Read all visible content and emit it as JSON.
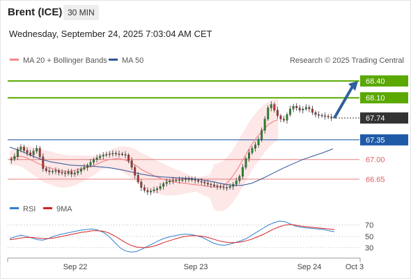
{
  "header": {
    "instrument": "Brent (ICE)",
    "timeframe": "30 MIN",
    "datetime": "Wednesday, September 24, 2025 7:03:04 AM CET"
  },
  "legend": {
    "ma20": "MA 20 + Bollinger Bands",
    "ma50": "MA 50",
    "copyright": "Research © 2025 Trading Central",
    "rsi": "RSI",
    "rsi_ma": "9MA"
  },
  "colors": {
    "ma20": "#f08a8a",
    "ma50": "#2f5597",
    "bollinger_fill": "#fde3e3",
    "resistance": "#5aa800",
    "support": "#e06060",
    "current": "#333333",
    "pivot": "#1e5aa8",
    "rsi": "#2f7fd0",
    "rsi_ma": "#d62020",
    "arrow": "#2f5f9e"
  },
  "chart_data": {
    "type": "candlestick",
    "x_ticks": [
      "Sep 22",
      "Sep 23",
      "Sep 24",
      "Oct 3"
    ],
    "y_range": [
      66.3,
      68.6
    ],
    "closes": [
      67.01,
      67.05,
      67.18,
      67.22,
      67.16,
      67.12,
      67.08,
      67.15,
      67.2,
      67.05,
      66.84,
      66.8,
      66.78,
      66.79,
      66.8,
      66.77,
      66.76,
      66.75,
      66.78,
      66.74,
      66.76,
      66.79,
      66.83,
      66.86,
      66.9,
      66.95,
      67.0,
      67.03,
      67.06,
      67.08,
      67.09,
      67.1,
      67.11,
      67.1,
      67.1,
      67.09,
      67.08,
      66.98,
      66.86,
      66.72,
      66.6,
      66.5,
      66.45,
      66.42,
      66.44,
      66.46,
      66.48,
      66.52,
      66.57,
      66.6,
      66.62,
      66.63,
      66.63,
      66.64,
      66.64,
      66.65,
      66.65,
      66.64,
      66.63,
      66.61,
      66.6,
      66.58,
      66.56,
      66.55,
      66.53,
      66.52,
      66.51,
      66.5,
      66.5,
      66.52,
      66.56,
      66.62,
      66.7,
      66.86,
      67.02,
      67.12,
      67.2,
      67.26,
      67.36,
      67.52,
      67.72,
      67.92,
      67.98,
      67.88,
      67.78,
      67.72,
      67.7,
      67.8,
      67.9,
      67.95,
      67.92,
      67.88,
      67.9,
      67.93,
      67.9,
      67.84,
      67.8,
      67.79,
      67.78,
      67.77,
      67.76,
      67.74
    ],
    "ma20": [
      67.02,
      67.05,
      67.06,
      67.05,
      67.02,
      66.98,
      66.94,
      66.9,
      66.87,
      66.85,
      66.82,
      66.8,
      66.79,
      66.79,
      66.8,
      66.82,
      66.84,
      66.86,
      66.88,
      66.91,
      66.95,
      66.98,
      67.0,
      67.01,
      67.02,
      67.0,
      66.97,
      66.93,
      66.88,
      66.82,
      66.78,
      66.74,
      66.7,
      66.67,
      66.64,
      66.62,
      66.6,
      66.59,
      66.58,
      66.57,
      66.56,
      66.55,
      66.54,
      66.53,
      66.52,
      66.51,
      66.51,
      66.53,
      66.6,
      66.7,
      66.82,
      66.96,
      67.1,
      67.24,
      67.36,
      67.46,
      67.55,
      67.63,
      67.68,
      67.71
    ],
    "ma50": [
      67.22,
      67.16,
      67.08,
      67.01,
      66.96,
      66.93,
      66.9,
      66.89,
      66.88,
      66.87,
      66.85,
      66.82,
      66.78,
      66.74,
      66.71,
      66.69,
      66.68,
      66.67,
      66.66,
      66.64,
      66.61,
      66.57,
      66.54,
      66.54,
      66.58,
      66.66,
      66.75,
      66.84,
      66.92,
      67.0,
      67.06,
      67.12,
      67.19
    ],
    "levels": [
      {
        "value": "68.40",
        "type": "resistance"
      },
      {
        "value": "68.10",
        "type": "resistance"
      },
      {
        "value": "67.74",
        "type": "last"
      },
      {
        "value": "67.35",
        "type": "pivot"
      },
      {
        "value": "67.00",
        "type": "support"
      },
      {
        "value": "66.65",
        "type": "support"
      }
    ],
    "rsi": {
      "ticks": [
        "70",
        "50",
        "30"
      ],
      "range": [
        15,
        82
      ],
      "rsi_values": [
        46,
        49,
        52,
        50,
        47,
        44,
        43,
        46,
        50,
        53,
        55,
        57,
        59,
        61,
        62,
        63,
        61,
        57,
        50,
        40,
        30,
        24,
        22,
        23,
        27,
        32,
        37,
        42,
        46,
        49,
        51,
        53,
        54,
        53,
        51,
        48,
        43,
        38,
        35,
        34,
        36,
        39,
        42,
        46,
        52,
        58,
        64,
        70,
        74,
        77,
        76,
        72,
        68,
        66,
        65,
        64,
        63,
        62,
        60,
        58
      ],
      "ma_values": [
        44,
        45,
        47,
        48,
        48,
        47,
        46,
        46,
        47,
        49,
        51,
        53,
        55,
        57,
        58,
        60,
        60,
        59,
        56,
        51,
        45,
        39,
        34,
        31,
        30,
        30,
        32,
        35,
        39,
        42,
        45,
        48,
        50,
        51,
        51,
        50,
        48,
        45,
        42,
        40,
        39,
        39,
        40,
        42,
        45,
        49,
        53,
        58,
        63,
        67,
        70,
        71,
        70,
        68,
        67,
        66,
        65,
        64,
        63,
        62
      ]
    }
  }
}
